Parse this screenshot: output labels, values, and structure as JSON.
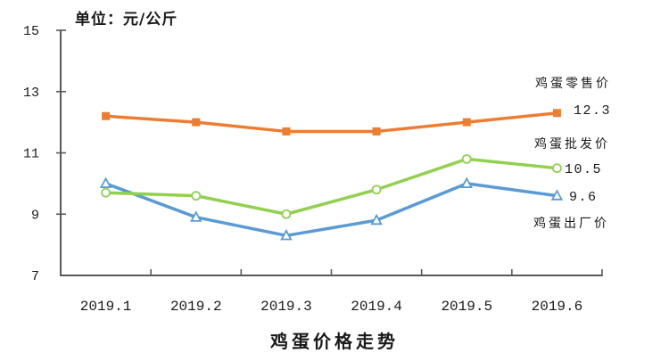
{
  "unit_label": "单位：元/公斤",
  "title": "鸡蛋价格走势",
  "colors": {
    "retail": "#ED7D31",
    "wholesale": "#92D050",
    "factory": "#5B9BD5",
    "axis": "#595959",
    "text": "#1a1a1a"
  },
  "labels": {
    "retail_series": "鸡蛋零售价",
    "wholesale_series": "鸡蛋批发价",
    "factory_series": "鸡蛋出厂价",
    "retail_end_value": "12.3",
    "wholesale_end_value": "10.5",
    "factory_end_value": "9.6"
  },
  "chart_data": {
    "type": "line",
    "title": "鸡蛋价格走势",
    "xlabel": "",
    "ylabel": "单位：元/公斤",
    "categories": [
      "2019.1",
      "2019.2",
      "2019.3",
      "2019.4",
      "2019.5",
      "2019.6"
    ],
    "series": [
      {
        "name": "鸡蛋零售价",
        "marker": "square",
        "color": "#ED7D31",
        "values": [
          12.2,
          12.0,
          11.7,
          11.7,
          12.0,
          12.3
        ],
        "end_label": "12.3"
      },
      {
        "name": "鸡蛋出厂价",
        "marker": "triangle",
        "color": "#5B9BD5",
        "values": [
          10.0,
          8.9,
          8.3,
          8.8,
          10.0,
          9.6
        ],
        "end_label": "9.6"
      },
      {
        "name": "鸡蛋批发价",
        "marker": "circle",
        "color": "#92D050",
        "values": [
          9.7,
          9.6,
          9.0,
          9.8,
          10.8,
          10.5
        ],
        "end_label": "10.5"
      }
    ],
    "ylim": [
      7,
      15
    ],
    "yticks": [
      7,
      9,
      11,
      13,
      15
    ],
    "grid": false,
    "legend_position": "right-inline-labels"
  }
}
